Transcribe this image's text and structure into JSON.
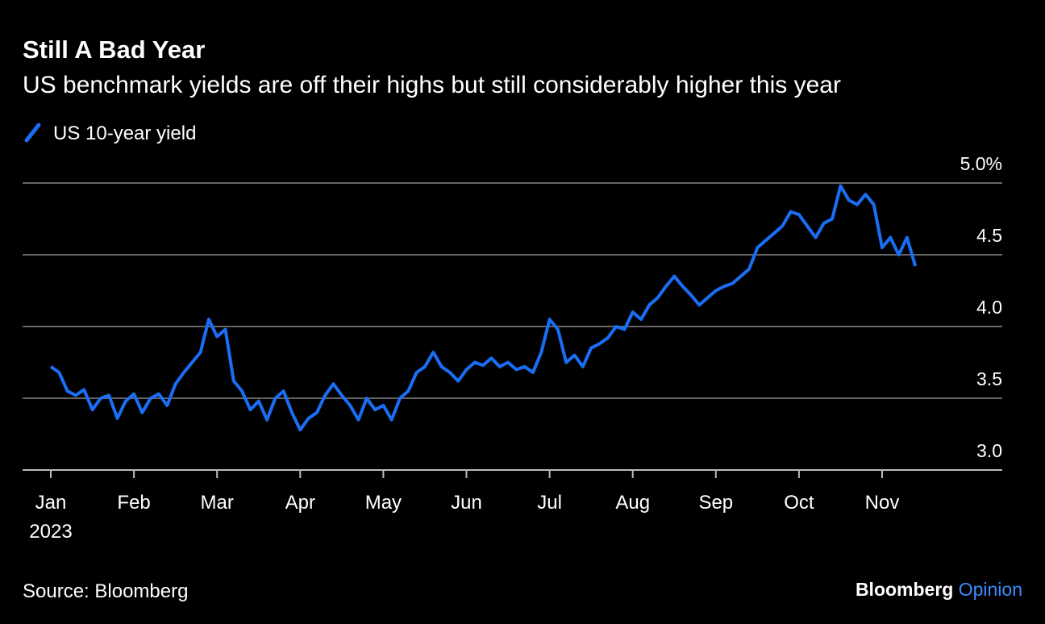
{
  "chart_data": {
    "type": "line",
    "title": "Still A Bad Year",
    "subtitle": "US benchmark yields are off their highs but still considerably higher this year",
    "categories": [
      "Jan",
      null,
      null,
      null,
      null,
      null,
      null,
      null,
      null,
      null,
      "Feb",
      null,
      null,
      null,
      null,
      null,
      null,
      null,
      null,
      null,
      "Mar",
      null,
      null,
      null,
      null,
      null,
      null,
      null,
      null,
      null,
      "Apr",
      null,
      null,
      null,
      null,
      null,
      null,
      null,
      null,
      null,
      "May",
      null,
      null,
      null,
      null,
      null,
      null,
      null,
      null,
      null,
      "Jun",
      null,
      null,
      null,
      null,
      null,
      null,
      null,
      null,
      null,
      "Jul",
      null,
      null,
      null,
      null,
      null,
      null,
      null,
      null,
      null,
      "Aug",
      null,
      null,
      null,
      null,
      null,
      null,
      null,
      null,
      null,
      "Sep",
      null,
      null,
      null,
      null,
      null,
      null,
      null,
      null,
      null,
      "Oct",
      null,
      null,
      null,
      null,
      null,
      null,
      null,
      null,
      null,
      "Nov",
      null,
      null,
      null,
      null
    ],
    "year_label": "2023",
    "series": [
      {
        "name": "US 10-year yield",
        "color": "#1a6ef5",
        "values": [
          3.72,
          3.68,
          3.55,
          3.52,
          3.56,
          3.42,
          3.5,
          3.52,
          3.36,
          3.48,
          3.53,
          3.4,
          3.5,
          3.53,
          3.45,
          3.6,
          3.68,
          3.75,
          3.82,
          4.05,
          3.93,
          3.98,
          3.62,
          3.55,
          3.42,
          3.48,
          3.35,
          3.5,
          3.55,
          3.4,
          3.28,
          3.36,
          3.4,
          3.52,
          3.6,
          3.52,
          3.45,
          3.35,
          3.5,
          3.42,
          3.45,
          3.35,
          3.5,
          3.55,
          3.68,
          3.72,
          3.82,
          3.72,
          3.68,
          3.62,
          3.7,
          3.75,
          3.73,
          3.78,
          3.72,
          3.75,
          3.7,
          3.72,
          3.68,
          3.82,
          4.05,
          3.98,
          3.75,
          3.8,
          3.72,
          3.85,
          3.88,
          3.92,
          4.0,
          3.98,
          4.1,
          4.05,
          4.15,
          4.2,
          4.28,
          4.35,
          4.28,
          4.22,
          4.15,
          4.2,
          4.25,
          4.28,
          4.3,
          4.35,
          4.4,
          4.55,
          4.6,
          4.65,
          4.7,
          4.8,
          4.78,
          4.7,
          4.62,
          4.72,
          4.75,
          4.98,
          4.88,
          4.85,
          4.92,
          4.85,
          4.55,
          4.62,
          4.5,
          4.62,
          4.42
        ]
      }
    ],
    "ylim": [
      3,
      5
    ],
    "yticks": [
      {
        "value": 3,
        "label": "3.0"
      },
      3.5,
      {
        "value": 4,
        "label": "4.0"
      },
      4.5,
      {
        "value": 5,
        "label": "5.0%"
      }
    ],
    "grid": true,
    "source": "Source: Bloomberg",
    "brand": "Bloomberg",
    "brand_suffix": "Opinion"
  }
}
